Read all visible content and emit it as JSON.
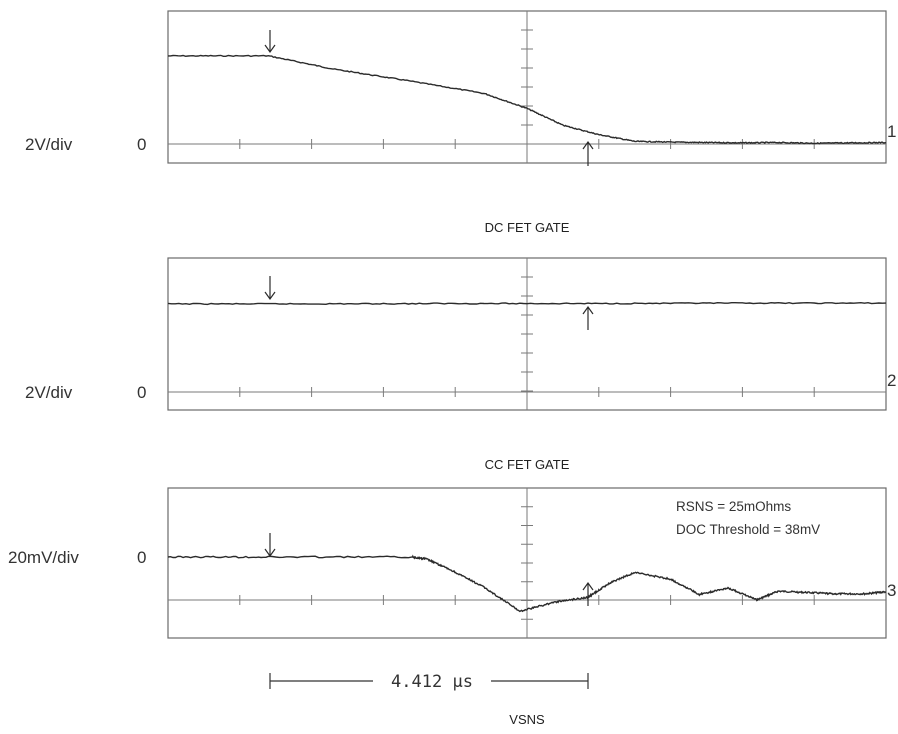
{
  "colors": {
    "frame": "#6a6a6a",
    "grid": "#7a7a7a",
    "trace": "#2b2b2b",
    "text": "#333333"
  },
  "scope": {
    "time_measurement": "4.412 µs",
    "bottom_caption": "VSNS"
  },
  "chart_data": [
    {
      "type": "line",
      "channel_number": "1",
      "scale_label": "2V/div",
      "zero_label": "0",
      "caption": "DC FET GATE",
      "grid": true,
      "x": [
        0.0,
        1.4,
        2.3,
        3.3,
        4.4,
        5.0,
        5.5,
        6.0,
        6.5,
        7.0,
        7.5,
        8.0,
        8.5,
        9.0,
        9.5,
        10.0
      ],
      "values": [
        2.35,
        2.35,
        2.0,
        1.7,
        1.35,
        0.95,
        0.5,
        0.25,
        0.07,
        0.05,
        0.04,
        0.03,
        0.04,
        0.02,
        0.03,
        0.04
      ]
    },
    {
      "type": "line",
      "channel_number": "2",
      "scale_label": "2V/div",
      "zero_label": "0",
      "caption": "CC FET GATE",
      "grid": true,
      "x": [
        0.0,
        2.0,
        4.0,
        6.0,
        8.0,
        10.0
      ],
      "values": [
        2.35,
        2.35,
        2.36,
        2.36,
        2.37,
        2.37
      ]
    },
    {
      "type": "line",
      "channel_number": "3",
      "scale_label": "20mV/div",
      "zero_label": "0",
      "annotations": [
        "RSNS = 25mOhms",
        "DOC Threshold = 38mV"
      ],
      "grid": true,
      "x": [
        0.0,
        1.4,
        3.4,
        3.6,
        3.95,
        4.4,
        4.9,
        5.4,
        5.85,
        6.15,
        6.5,
        7.0,
        7.4,
        7.8,
        8.2,
        8.5,
        8.9,
        9.3,
        9.7,
        10.0
      ],
      "values": [
        0,
        0,
        0,
        -3,
        -20,
        -45,
        -81,
        -67,
        -60,
        -39,
        -23,
        -33,
        -56,
        -46,
        -64,
        -51,
        -53,
        -55,
        -55,
        -52
      ]
    }
  ]
}
